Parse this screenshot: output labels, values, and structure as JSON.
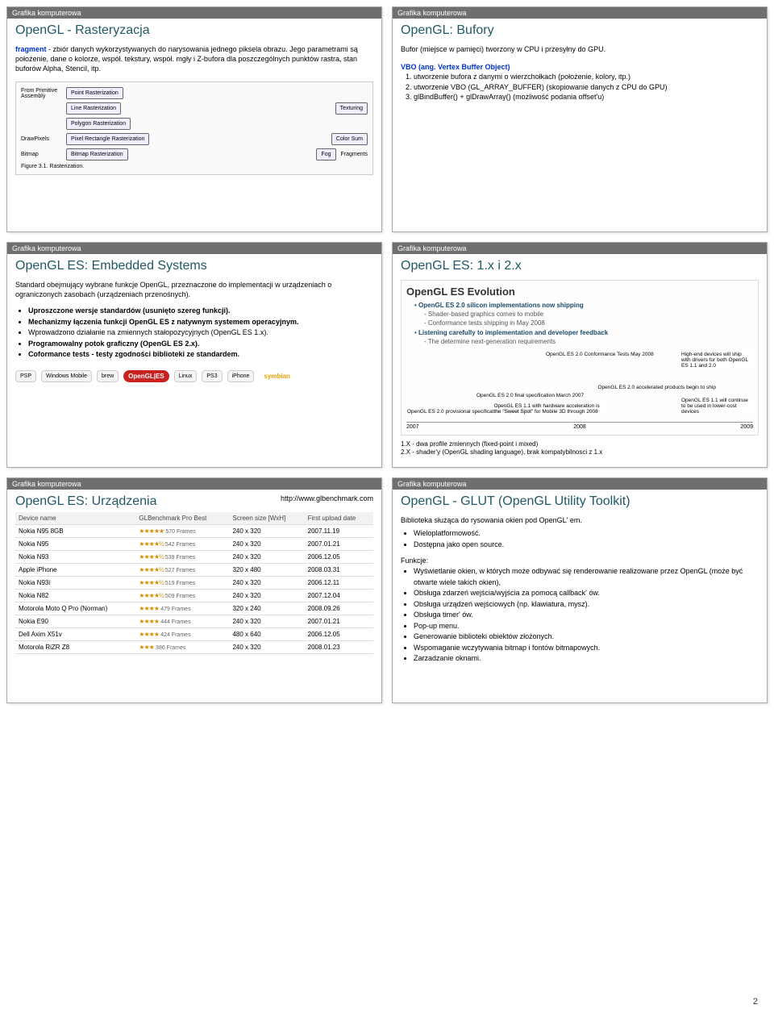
{
  "header": "Grafika komputerowa",
  "page_number": "2",
  "slide1": {
    "title": "OpenGL - Rasteryzacja",
    "lead_word": "fragment",
    "lead_rest": " - zbiór danych wykorzystywanych do narysowania jednego piksela obrazu. Jego parametrami są położenie, dane o kolorze, współ. tekstury, współ. mgły i Z-bufora dla poszczególnych punktów rastra, stan buforów Alpha, Stencil, itp.",
    "boxes": {
      "point": "Point Rasterization",
      "line": "Line Rasterization",
      "poly": "Polygon Rasterization",
      "pixel": "Pixel Rectangle Rasterization",
      "bitmap": "Bitmap Rasterization",
      "tex": "Texturing",
      "color": "Color Sum",
      "fog": "Fog",
      "frag": "Fragments"
    },
    "labels": {
      "from": "From Primitive Assembly",
      "draw": "DrawPixels",
      "bmp": "Bitmap"
    },
    "caption": "Figure 3.1. Rasterization."
  },
  "slide2": {
    "title": "OpenGL: Bufory",
    "p1": "Bufor (miejsce w pamięci) tworzony w CPU i przesyłny do GPU.",
    "vbo": "VBO (ang. Vertex Buffer Object)",
    "items": [
      "utworzenie bufora z danymi o wierzchołkach (położenie, kolory, itp.)",
      "utworzenie VBO (GL_ARRAY_BUFFER) (skopiowanie danych z CPU do GPU)",
      "glBindBuffer() + glDrawArray() (możliwość podania offset'u)"
    ]
  },
  "slide3": {
    "title": "OpenGL ES: Embedded Systems",
    "p1": "Standard obejmujący wybrane funkcje OpenGL, przeznaczone do implementacji w urządzeniach o ograniczonych zasobach (urządzeniach przenośnych).",
    "bullets": [
      "Uproszczone wersje standardów (usunięto szereg funkcji).",
      "Mechanizmy łączenia funkcji OpenGL ES z natywnym systemem operacyjnym.",
      "Wprowadzono działanie na zmiennych stałopozycyjnych (OpenGL ES 1.x).",
      "Programowalny potok graficzny (OpenGL ES 2.x).",
      "Coformance tests - testy zgodności biblioteki ze standardem."
    ],
    "icons": [
      "PSP",
      "Windows Mobile",
      "brew",
      "OpenGL|ES",
      "Linux",
      "PS3",
      "iPhone",
      "symbian"
    ]
  },
  "slide4": {
    "title": "OpenGL ES: 1.x i 2.x",
    "evo_title": "OpenGL ES Evolution",
    "evo_h1": "OpenGL ES 2.0 silicon implementations now shipping",
    "evo_h1a": "Shader-based graphics comes to mobile",
    "evo_h1b": "Conformance tests shipping in May 2008",
    "evo_h2": "Listening carefully to implementation and developer feedback",
    "evo_h2a": "The determine next-generation requirements",
    "bars": [
      {
        "label": "OpenGL ES 2.0 provisional specification August 2005",
        "x": 0
      },
      {
        "label": "OpenGL ES 2.0 final specification March 2007",
        "x": 1
      },
      {
        "label": "OpenGL ES 2.0 Conformance Tests May 2008",
        "x": 2
      },
      {
        "label": "OpenGL ES 2.0 accelerated products begin to ship",
        "x": 3
      },
      {
        "label": "High-end devices will ship with drivers for both OpenGL ES 1.1 and 2.0",
        "x": 4
      },
      {
        "label": "OpenGL ES 1.1 with hardware acceleration is the \"Sweet Spot\" for Mobile 3D through 2008",
        "x": 1
      },
      {
        "label": "OpenGL ES 1.1 will continue to be used in lower-cost devices",
        "x": 4
      }
    ],
    "years": [
      "2007",
      "2008",
      "2009"
    ],
    "foot1": "1.X - dwa profile zmiennych (fixed-point i mixed)",
    "foot2": "2.X - shader'y (OpenGL shading language), brak kompatybilnosci z 1.x"
  },
  "slide5": {
    "title": "OpenGL ES: Urządzenia",
    "url": "http://www.glbenchmark.com",
    "columns": [
      "Device name",
      "GLBenchmark Pro Best",
      "Screen size [WxH]",
      "First upload date"
    ],
    "rows": [
      [
        "Nokia N95 8GB",
        "★★★★★",
        "570 Frames",
        "240 x 320",
        "2007.11.19"
      ],
      [
        "Nokia N95",
        "★★★★½",
        "542 Frames",
        "240 x 320",
        "2007.01.21"
      ],
      [
        "Nokia N93",
        "★★★★½",
        "539 Frames",
        "240 x 320",
        "2006.12.05"
      ],
      [
        "Apple iPhone",
        "★★★★½",
        "527 Frames",
        "320 x 480",
        "2008.03.31"
      ],
      [
        "Nokia N93i",
        "★★★★½",
        "519 Frames",
        "240 x 320",
        "2006.12.11"
      ],
      [
        "Nokia N82",
        "★★★★½",
        "509 Frames",
        "240 x 320",
        "2007.12.04"
      ],
      [
        "Motorola Moto Q Pro (Norman)",
        "★★★★",
        "479 Frames",
        "320 x 240",
        "2008.09.26"
      ],
      [
        "Nokia E90",
        "★★★★",
        "444 Frames",
        "240 x 320",
        "2007.01.21"
      ],
      [
        "Dell Axim X51v",
        "★★★★",
        "424 Frames",
        "480 x 640",
        "2006.12.05"
      ],
      [
        "Motorola RiZR Z8",
        "★★★",
        "386 Frames",
        "240 x 320",
        "2008.01.23"
      ]
    ]
  },
  "slide6": {
    "title": "OpenGL - GLUT (OpenGL Utility Toolkit)",
    "p1": "Biblioteka służąca do rysowania okien pod OpenGL' em.",
    "b1": [
      "Wieloplatformowość.",
      "Dostępna jako open source."
    ],
    "funcs_head": "Funkcje:",
    "funcs": [
      "Wyświetlanie okien, w których może odbywać się renderowanie realizowane przez OpenGL (może być otwarte wiele takich okien),",
      "Obsługa zdarzeń wejścia/wyjścia za pomocą callback' ów.",
      "Obsługa urządzeń wejściowych (np. klawiatura, mysz).",
      "Obsługa timer' ów.",
      "Pop-up menu.",
      "Generowanie biblioteki obiektów złożonych.",
      "Wspomaganie wczytywania bitmap i fontów bitmapowych.",
      "Zarzadzanie oknami."
    ]
  }
}
